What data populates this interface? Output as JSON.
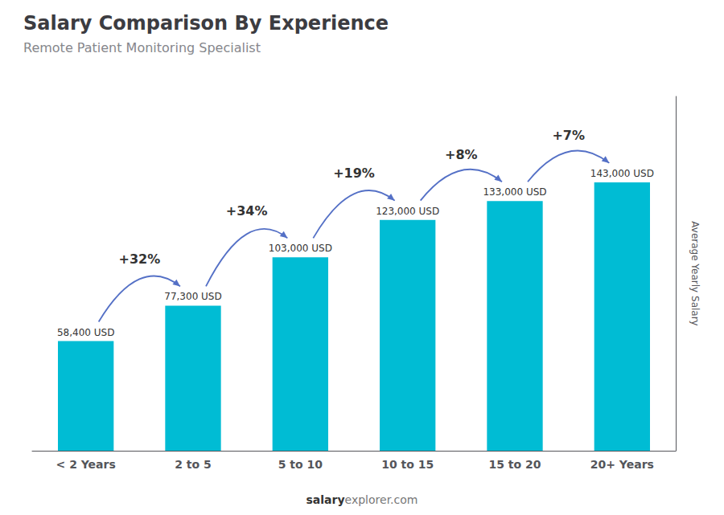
{
  "chart_data": {
    "type": "bar",
    "title": "Salary Comparison By Experience",
    "subtitle": "Remote Patient Monitoring Specialist",
    "categories": [
      "< 2 Years",
      "2 to 5",
      "5 to 10",
      "10 to 15",
      "15 to 20",
      "20+ Years"
    ],
    "values": [
      58400,
      77300,
      103000,
      123000,
      133000,
      143000
    ],
    "value_labels": [
      "58,400 USD",
      "77,300 USD",
      "103,000 USD",
      "123,000 USD",
      "133,000 USD",
      "143,000 USD"
    ],
    "data_labels": true,
    "color": "#00bcd4",
    "ylabel": "Average Yearly Salary",
    "ylim": [
      0,
      188760
    ],
    "tick_labels": "x",
    "grid": false,
    "annotations": [
      {
        "text": "+32%",
        "from": "< 2 Years",
        "to": "2 to 5"
      },
      {
        "text": "+34%",
        "from": "2 to 5",
        "to": "5 to 10"
      },
      {
        "text": "+19%",
        "from": "5 to 10",
        "to": "10 to 15"
      },
      {
        "text": "+8%",
        "from": "10 to 15",
        "to": "15 to 20"
      },
      {
        "text": "+7%",
        "from": "15 to 20",
        "to": "20+ Years"
      }
    ],
    "footer": {
      "bold": "salary",
      "normal": "explorer.com"
    }
  }
}
